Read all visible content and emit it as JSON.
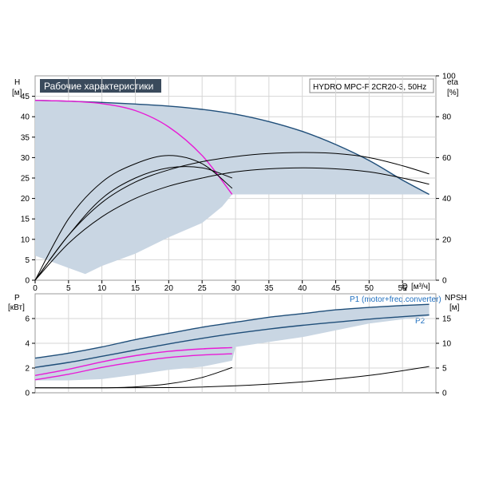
{
  "chart_data": [
    {
      "type": "line",
      "title": "Рабочие характеристики",
      "subtitle": "HYDRO MPC-F 2CR20-3, 50Hz",
      "left_axis": {
        "label": "H",
        "unit": "[м]",
        "ticks": [
          "0",
          "5",
          "10",
          "15",
          "20",
          "25",
          "30",
          "35",
          "40",
          "45"
        ],
        "range": [
          0,
          50
        ]
      },
      "right_axis": {
        "label": "eta",
        "unit": "[%]",
        "ticks": [
          "0",
          "20",
          "40",
          "60",
          "80",
          "100"
        ],
        "range": [
          0,
          100
        ]
      },
      "x_axis": {
        "label": "Q",
        "unit": "[м³/ч]",
        "ticks": [
          "0",
          "5",
          "10",
          "15",
          "20",
          "25",
          "30",
          "35",
          "40",
          "45",
          "50",
          "55"
        ],
        "range": [
          0,
          60
        ]
      },
      "grid": true,
      "series": [
        {
          "color": "#1f4e79",
          "x": [
            0,
            5,
            10,
            15,
            20,
            25,
            30,
            35,
            40,
            45,
            50,
            55,
            59
          ],
          "y": [
            44,
            43.8,
            43.5,
            43.1,
            42.6,
            41.8,
            40.6,
            38.8,
            36.4,
            33.2,
            29.3,
            24.5,
            21
          ]
        },
        {
          "color": "#e81bd6",
          "x": [
            0,
            5,
            10,
            15,
            20,
            25,
            29.5
          ],
          "y": [
            44,
            43.8,
            43.2,
            41.5,
            37.5,
            30.5,
            21
          ]
        },
        {
          "color": "#000000",
          "x": [
            0,
            5,
            10,
            15,
            20,
            25,
            29.5
          ],
          "y": [
            0,
            30,
            48,
            57,
            61,
            57,
            45
          ],
          "axis": "right"
        },
        {
          "color": "#000000",
          "x": [
            0,
            5,
            10,
            15,
            20,
            25,
            29.5
          ],
          "y": [
            0,
            22,
            40,
            50,
            55,
            55,
            50
          ],
          "axis": "right"
        },
        {
          "color": "#000000",
          "x": [
            0,
            5,
            10,
            15,
            20,
            25,
            30,
            35,
            40,
            45,
            50,
            55,
            59
          ],
          "y": [
            0,
            22,
            38,
            48,
            54,
            58,
            60.5,
            62,
            62.5,
            62,
            60,
            56,
            52
          ],
          "axis": "right"
        },
        {
          "color": "#000000",
          "x": [
            0,
            5,
            10,
            15,
            20,
            25,
            30,
            35,
            40,
            45,
            50,
            55,
            59
          ],
          "y": [
            0,
            18,
            31,
            40,
            46,
            50,
            53,
            54.5,
            55,
            54.5,
            53,
            50,
            47
          ],
          "axis": "right"
        }
      ],
      "envelope": {
        "upper_x": [
          0,
          5,
          10,
          15,
          20,
          25,
          30,
          35,
          40,
          45,
          50,
          55,
          59
        ],
        "upper_y": [
          44,
          43.8,
          43.5,
          43.1,
          42.6,
          41.8,
          40.6,
          38.8,
          36.4,
          33.2,
          29.3,
          24.5,
          21
        ],
        "lower_x": [
          59,
          29.5,
          28,
          25,
          20,
          15,
          10,
          7.5,
          5,
          0
        ],
        "lower_y": [
          21,
          21,
          18,
          14,
          10.5,
          6.5,
          3.5,
          1.5,
          3,
          6
        ]
      }
    },
    {
      "type": "line",
      "left_axis": {
        "label": "P",
        "unit": "[кВт]",
        "ticks": [
          "0",
          "2",
          "4",
          "6"
        ],
        "range": [
          0,
          8
        ]
      },
      "right_axis": {
        "label": "NPSH",
        "unit": "[м]",
        "ticks": [
          "0",
          "5",
          "10",
          "15"
        ],
        "range": [
          0,
          20
        ]
      },
      "x_axis": {
        "range": [
          0,
          60
        ]
      },
      "grid": true,
      "annotations": [
        "P1 (motor+freq.converter)",
        "P2"
      ],
      "series": [
        {
          "color": "#1f4e79",
          "x": [
            0,
            5,
            10,
            15,
            20,
            25,
            30,
            35,
            40,
            45,
            50,
            55,
            59
          ],
          "y": [
            2.8,
            3.2,
            3.7,
            4.3,
            4.8,
            5.3,
            5.7,
            6.1,
            6.4,
            6.7,
            6.9,
            7.05,
            7.15
          ]
        },
        {
          "color": "#1f4e79",
          "x": [
            0,
            5,
            10,
            15,
            20,
            25,
            30,
            35,
            40,
            45,
            50,
            55,
            59
          ],
          "y": [
            2.05,
            2.45,
            2.95,
            3.45,
            3.95,
            4.4,
            4.8,
            5.15,
            5.45,
            5.7,
            5.95,
            6.15,
            6.3
          ]
        },
        {
          "color": "#e81bd6",
          "x": [
            0,
            5,
            10,
            15,
            20,
            25,
            29.5
          ],
          "y": [
            1.4,
            1.9,
            2.5,
            3.0,
            3.35,
            3.55,
            3.65
          ]
        },
        {
          "color": "#e81bd6",
          "x": [
            0,
            5,
            10,
            15,
            20,
            25,
            29.5
          ],
          "y": [
            1.05,
            1.5,
            2.05,
            2.5,
            2.85,
            3.05,
            3.15
          ]
        },
        {
          "color": "#000000",
          "x": [
            0,
            10,
            15,
            20,
            25,
            29.5
          ],
          "y": [
            1.0,
            1.0,
            1.2,
            1.8,
            3.1,
            5.1
          ],
          "axis": "right"
        },
        {
          "color": "#000000",
          "x": [
            0,
            20,
            30,
            40,
            50,
            59
          ],
          "y": [
            1.0,
            1.05,
            1.4,
            2.2,
            3.5,
            5.3
          ],
          "axis": "right"
        }
      ],
      "envelope": {
        "upper_x": [
          0,
          5,
          10,
          15,
          20,
          25,
          30,
          35,
          40,
          45,
          50,
          55,
          59
        ],
        "upper_y": [
          2.8,
          3.2,
          3.7,
          4.3,
          4.8,
          5.3,
          5.7,
          6.1,
          6.4,
          6.7,
          6.9,
          7.05,
          7.15
        ],
        "lower_x": [
          59,
          50,
          40,
          35,
          30,
          29.5,
          25,
          20,
          15,
          10,
          5,
          0
        ],
        "lower_y": [
          6.2,
          5.6,
          4.5,
          4.1,
          3.7,
          2.6,
          2.1,
          1.85,
          1.45,
          1.1,
          1.0,
          1.0
        ]
      }
    }
  ]
}
